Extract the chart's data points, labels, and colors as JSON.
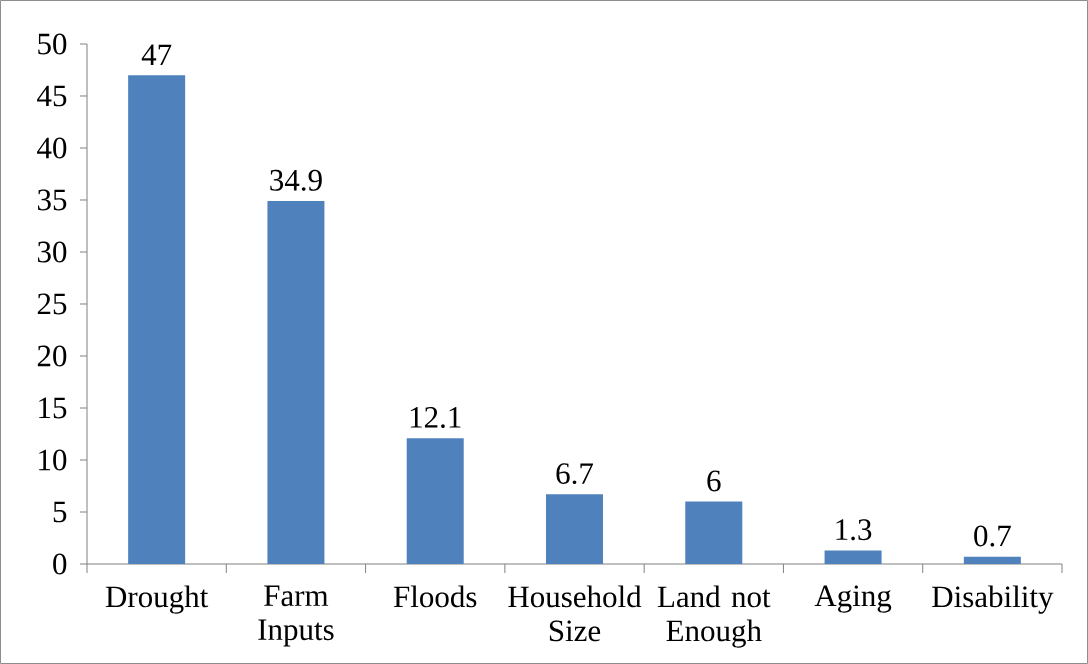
{
  "chart_data": {
    "type": "bar",
    "categories": [
      "Drought",
      "Farm Inputs",
      "Floods",
      "Household Size",
      "Land not Enough",
      "Aging",
      "Disability"
    ],
    "values": [
      47,
      34.9,
      12.1,
      6.7,
      6,
      1.3,
      0.7
    ],
    "color": "#4f81bd",
    "ylim": [
      0,
      50
    ],
    "yticks": [
      0,
      5,
      10,
      15,
      20,
      25,
      30,
      35,
      40,
      45,
      50
    ],
    "data_labels": true
  }
}
